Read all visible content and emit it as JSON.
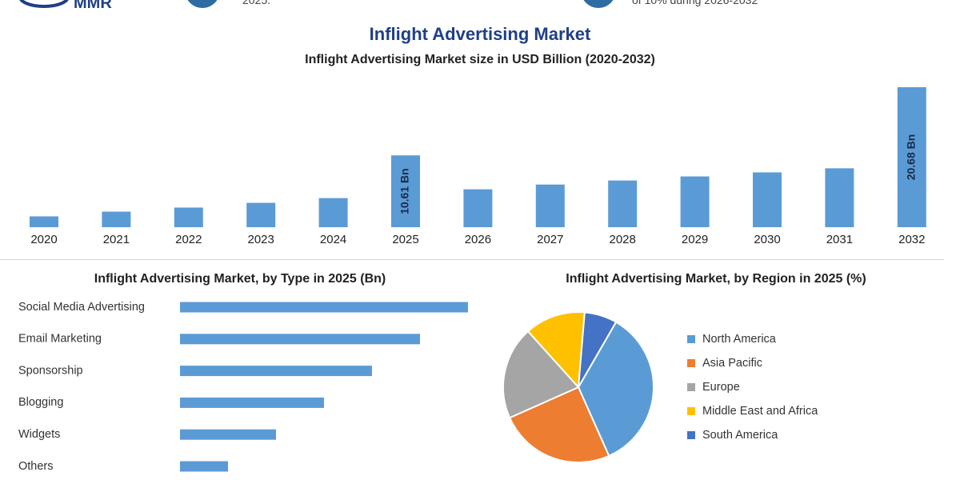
{
  "header": {
    "logo_text": "MMR",
    "stat_left_text": "2025.",
    "stat_right_text": "of 10% during 2026-2032"
  },
  "colors": {
    "bar": "#5b9bd5",
    "title": "#1f3f86",
    "circle": "#2e6da4",
    "pie": [
      "#5b9bd5",
      "#ed7d31",
      "#a5a5a5",
      "#ffc000",
      "#4472c4"
    ]
  },
  "chart_data": [
    {
      "type": "bar",
      "title": "Inflight Advertising Market",
      "subtitle": "Inflight Advertising Market size in USD Billion (2020-2032)",
      "categories": [
        "2020",
        "2021",
        "2022",
        "2023",
        "2024",
        "2025",
        "2026",
        "2027",
        "2028",
        "2029",
        "2030",
        "2031",
        "2032"
      ],
      "values": [
        1.6,
        2.3,
        2.9,
        3.6,
        4.3,
        10.61,
        5.6,
        6.3,
        6.9,
        7.5,
        8.1,
        8.7,
        20.68
      ],
      "data_labels": {
        "5": "10.61 Bn",
        "12": "20.68 Bn"
      },
      "xlabel": "",
      "ylabel": "",
      "grid": false,
      "legend": "none"
    },
    {
      "type": "bar",
      "orientation": "horizontal",
      "title": "Inflight Advertising Market, by Type in 2025 (Bn)",
      "categories": [
        "Social Media Advertising",
        "Email Marketing",
        "Sponsorship",
        "Blogging",
        "Widgets",
        "Others"
      ],
      "values": [
        3.6,
        3.0,
        2.4,
        1.8,
        1.2,
        0.6
      ],
      "grid": false,
      "legend": "none"
    },
    {
      "type": "pie",
      "title": "Inflight Advertising Market, by Region in 2025 (%)",
      "categories": [
        "North America",
        "Asia Pacific",
        "Europe",
        "Middle East and Africa",
        "South America"
      ],
      "values": [
        35,
        25,
        20,
        13,
        7
      ],
      "legend": "right"
    }
  ]
}
